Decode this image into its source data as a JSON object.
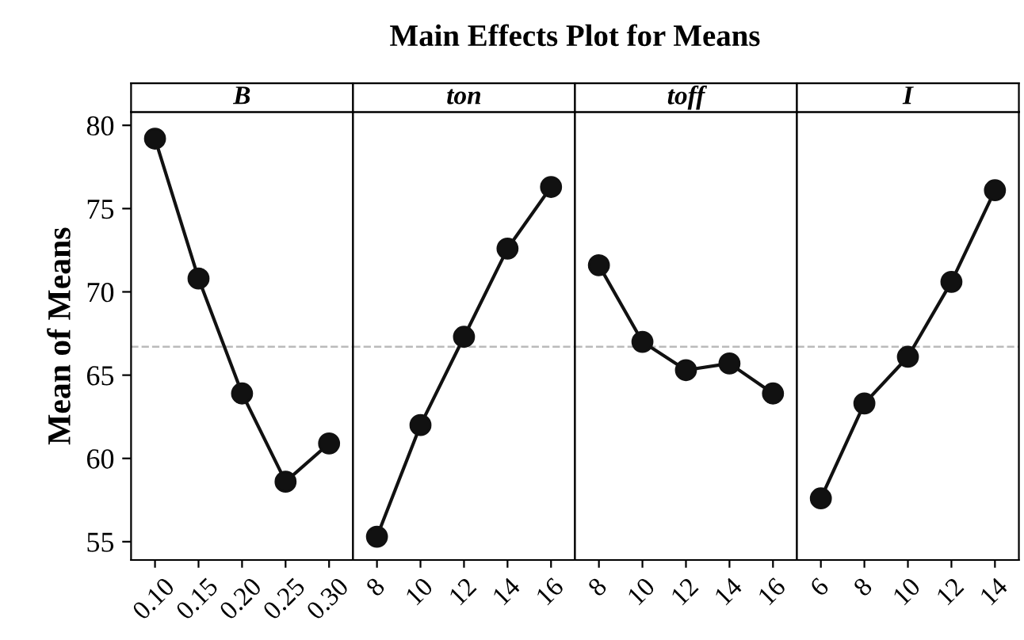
{
  "chart_data": [
    {
      "type": "line",
      "subtitle": "B",
      "ylabel": "Mean of Means",
      "categories": [
        "0.10",
        "0.15",
        "0.20",
        "0.25",
        "0.30"
      ],
      "series": [
        {
          "color": "#111111",
          "values": [
            79.2,
            70.8,
            63.9,
            58.6,
            60.9
          ]
        }
      ],
      "ylim": [
        53.9,
        80.8
      ],
      "yticks": [
        55,
        60,
        65,
        70,
        75,
        80
      ],
      "marker": "circle",
      "line_style": "solid",
      "grid": false,
      "ref_lines": [
        {
          "axis": "y",
          "value": 66.7,
          "color": "#bbbbbb",
          "line_style": "dashed"
        }
      ]
    },
    {
      "type": "line",
      "title": "Main Effects Plot for Means",
      "subtitle": "ton",
      "categories": [
        "8",
        "10",
        "12",
        "14",
        "16"
      ],
      "series": [
        {
          "color": "#111111",
          "values": [
            55.3,
            62.0,
            67.3,
            72.6,
            76.3
          ]
        }
      ],
      "ylim": [
        53.9,
        80.8
      ],
      "tick_labels": "x",
      "marker": "circle",
      "line_style": "solid",
      "grid": false,
      "ref_lines": [
        {
          "axis": "y",
          "value": 66.7,
          "color": "#bbbbbb",
          "line_style": "dashed"
        }
      ]
    },
    {
      "type": "line",
      "subtitle": "toff",
      "categories": [
        "8",
        "10",
        "12",
        "14",
        "16"
      ],
      "series": [
        {
          "color": "#111111",
          "values": [
            71.6,
            67.0,
            65.3,
            65.7,
            63.9
          ]
        }
      ],
      "ylim": [
        53.9,
        80.8
      ],
      "tick_labels": "x",
      "marker": "circle",
      "line_style": "solid",
      "grid": false,
      "ref_lines": [
        {
          "axis": "y",
          "value": 66.7,
          "color": "#bbbbbb",
          "line_style": "dashed"
        }
      ]
    },
    {
      "type": "line",
      "subtitle": "I",
      "categories": [
        "6",
        "8",
        "10",
        "12",
        "14"
      ],
      "series": [
        {
          "color": "#111111",
          "values": [
            57.6,
            63.3,
            66.1,
            70.6,
            76.1
          ]
        }
      ],
      "ylim": [
        53.9,
        80.8
      ],
      "tick_labels": "x",
      "marker": "circle",
      "line_style": "solid",
      "grid": false,
      "ref_lines": [
        {
          "axis": "y",
          "value": 66.7,
          "color": "#bbbbbb",
          "line_style": "dashed"
        }
      ]
    }
  ]
}
